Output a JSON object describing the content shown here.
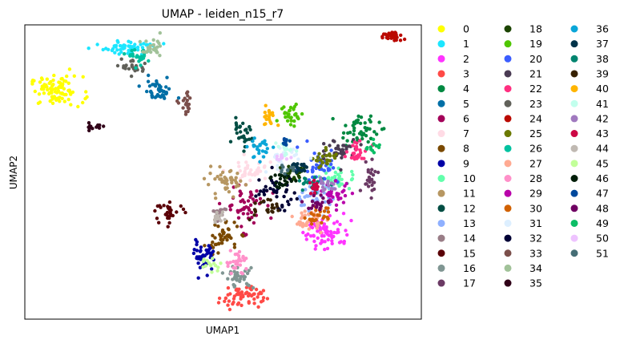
{
  "chart_data": {
    "type": "scatter",
    "title": "UMAP - leiden_n15_r7",
    "xlabel": "UMAP1",
    "ylabel": "UMAP2",
    "xlim": [
      0,
      100
    ],
    "ylim": [
      0,
      100
    ],
    "grid": false,
    "ticks_visible": false,
    "legend_placement": "right, outside plot, 3 columns",
    "series": [
      {
        "name": "0",
        "color": "#ffff00",
        "x": 8.0,
        "y": 77.5,
        "sx": 3.3,
        "sy": 2.5,
        "n": 90
      },
      {
        "name": "1",
        "color": "#1ce6ff",
        "x": 26.5,
        "y": 92.2,
        "sx": 3.2,
        "sy": 1.2,
        "n": 55
      },
      {
        "name": "2",
        "color": "#ff34ff",
        "x": 76.2,
        "y": 29.9,
        "sx": 3.0,
        "sy": 3.0,
        "n": 70
      },
      {
        "name": "3",
        "color": "#ff4a46",
        "x": 54.6,
        "y": 7.8,
        "sx": 2.8,
        "sy": 1.9,
        "n": 60
      },
      {
        "name": "4",
        "color": "#008941",
        "x": 84.5,
        "y": 64.0,
        "sx": 2.5,
        "sy": 2.5,
        "n": 50
      },
      {
        "name": "5",
        "color": "#006fa6",
        "x": 33.6,
        "y": 77.4,
        "sx": 2.0,
        "sy": 2.0,
        "n": 45
      },
      {
        "name": "6",
        "color": "#a30059",
        "x": 55.3,
        "y": 39.0,
        "sx": 2.5,
        "sy": 4.0,
        "n": 55
      },
      {
        "name": "7",
        "color": "#ffdbe5",
        "x": 56.5,
        "y": 50.0,
        "sx": 3.0,
        "sy": 2.0,
        "n": 40
      },
      {
        "name": "8",
        "color": "#7a4900",
        "x": 49.8,
        "y": 28.1,
        "sx": 2.0,
        "sy": 2.5,
        "n": 45
      },
      {
        "name": "9",
        "color": "#0000a6",
        "x": 45.3,
        "y": 21.5,
        "sx": 1.3,
        "sy": 2.5,
        "n": 45
      },
      {
        "name": "10",
        "color": "#63ffac",
        "x": 78.8,
        "y": 47.6,
        "sx": 2.5,
        "sy": 2.0,
        "n": 45
      },
      {
        "name": "11",
        "color": "#b79762",
        "x": 50.6,
        "y": 46.2,
        "sx": 2.5,
        "sy": 2.0,
        "n": 45
      },
      {
        "name": "12",
        "color": "#004d43",
        "x": 54.7,
        "y": 61.9,
        "sx": 1.5,
        "sy": 2.5,
        "n": 30
      },
      {
        "name": "13",
        "color": "#8fb0ff",
        "x": 72.7,
        "y": 41.5,
        "sx": 2.5,
        "sy": 2.5,
        "n": 40
      },
      {
        "name": "14",
        "color": "#997d87",
        "x": 49.0,
        "y": 36.1,
        "sx": 1.0,
        "sy": 1.5,
        "n": 15
      },
      {
        "name": "15",
        "color": "#5a0007",
        "x": 36.7,
        "y": 36.4,
        "sx": 1.8,
        "sy": 1.5,
        "n": 30
      },
      {
        "name": "16",
        "color": "#809693",
        "x": 54.2,
        "y": 14.3,
        "sx": 1.8,
        "sy": 1.8,
        "n": 35
      },
      {
        "name": "17",
        "color": "#6b3a64",
        "x": 87.0,
        "y": 49.0,
        "sx": 1.0,
        "sy": 3.0,
        "n": 25
      },
      {
        "name": "18",
        "color": "#1b4400",
        "x": 68.2,
        "y": 49.7,
        "sx": 2.0,
        "sy": 2.0,
        "n": 30
      },
      {
        "name": "19",
        "color": "#4fc601",
        "x": 67.4,
        "y": 69.6,
        "sx": 1.5,
        "sy": 2.0,
        "n": 30
      },
      {
        "name": "20",
        "color": "#3b5dff",
        "x": 74.0,
        "y": 52.0,
        "sx": 2.5,
        "sy": 3.0,
        "n": 45
      },
      {
        "name": "21",
        "color": "#4a3b53",
        "x": 79.5,
        "y": 57.5,
        "sx": 2.5,
        "sy": 2.0,
        "n": 40
      },
      {
        "name": "22",
        "color": "#ff2f80",
        "x": 84.0,
        "y": 56.5,
        "sx": 1.5,
        "sy": 1.5,
        "n": 30
      },
      {
        "name": "23",
        "color": "#61615a",
        "x": 27.5,
        "y": 86.0,
        "sx": 1.5,
        "sy": 1.5,
        "n": 25
      },
      {
        "name": "24",
        "color": "#ba0900",
        "x": 92.5,
        "y": 96.0,
        "sx": 1.5,
        "sy": 0.9,
        "n": 35
      },
      {
        "name": "25",
        "color": "#6b7900",
        "x": 76.2,
        "y": 54.3,
        "sx": 1.5,
        "sy": 1.5,
        "n": 25
      },
      {
        "name": "26",
        "color": "#00c2a0",
        "x": 29.0,
        "y": 89.0,
        "sx": 1.3,
        "sy": 1.3,
        "n": 25
      },
      {
        "name": "27",
        "color": "#ffaa92",
        "x": 71.4,
        "y": 33.8,
        "sx": 1.8,
        "sy": 1.8,
        "n": 35
      },
      {
        "name": "28",
        "color": "#ff90c9",
        "x": 53.5,
        "y": 19.5,
        "sx": 1.5,
        "sy": 2.0,
        "n": 30
      },
      {
        "name": "29",
        "color": "#b903aa",
        "x": 78.5,
        "y": 42.0,
        "sx": 2.0,
        "sy": 2.0,
        "n": 30
      },
      {
        "name": "30",
        "color": "#d16100",
        "x": 74.0,
        "y": 35.0,
        "sx": 1.5,
        "sy": 1.5,
        "n": 25
      },
      {
        "name": "31",
        "color": "#ddefff",
        "x": 65.0,
        "y": 54.0,
        "sx": 2.0,
        "sy": 2.0,
        "n": 25
      },
      {
        "name": "32",
        "color": "#000035",
        "x": 63.2,
        "y": 43.1,
        "sx": 3.0,
        "sy": 3.0,
        "n": 40
      },
      {
        "name": "33",
        "color": "#7b4f4b",
        "x": 40.8,
        "y": 72.7,
        "sx": 0.8,
        "sy": 1.8,
        "n": 20
      },
      {
        "name": "34",
        "color": "#a1c299",
        "x": 32.3,
        "y": 91.3,
        "sx": 1.5,
        "sy": 1.8,
        "n": 25
      },
      {
        "name": "35",
        "color": "#300018",
        "x": 17.5,
        "y": 65.5,
        "sx": 1.5,
        "sy": 0.7,
        "n": 15
      },
      {
        "name": "36",
        "color": "#0aa6d8",
        "x": 59.5,
        "y": 58.0,
        "sx": 1.5,
        "sy": 2.0,
        "n": 25
      },
      {
        "name": "37",
        "color": "#013349",
        "x": 69.0,
        "y": 51.5,
        "sx": 1.5,
        "sy": 1.5,
        "n": 20
      },
      {
        "name": "38",
        "color": "#00846f",
        "x": 72.0,
        "y": 45.5,
        "sx": 1.5,
        "sy": 1.5,
        "n": 20
      },
      {
        "name": "39",
        "color": "#372101",
        "x": 60.0,
        "y": 37.5,
        "sx": 2.0,
        "sy": 2.0,
        "n": 20
      },
      {
        "name": "40",
        "color": "#ffb500",
        "x": 61.5,
        "y": 69.0,
        "sx": 1.0,
        "sy": 1.5,
        "n": 20
      },
      {
        "name": "41",
        "color": "#c2ffed",
        "x": 66.0,
        "y": 58.0,
        "sx": 1.2,
        "sy": 1.2,
        "n": 20
      },
      {
        "name": "42",
        "color": "#a079bf",
        "x": 76.0,
        "y": 46.0,
        "sx": 1.2,
        "sy": 1.2,
        "n": 15
      },
      {
        "name": "43",
        "color": "#cc0744",
        "x": 73.5,
        "y": 44.5,
        "sx": 1.2,
        "sy": 1.2,
        "n": 15
      },
      {
        "name": "44",
        "color": "#c0b9b2",
        "x": 48.7,
        "y": 34.5,
        "sx": 0.8,
        "sy": 1.2,
        "n": 15
      },
      {
        "name": "45",
        "color": "#c2ff99",
        "x": 47.0,
        "y": 18.6,
        "sx": 1.2,
        "sy": 1.2,
        "n": 15
      },
      {
        "name": "46",
        "color": "#001e09",
        "x": 65.0,
        "y": 47.5,
        "sx": 1.5,
        "sy": 1.5,
        "n": 20
      },
      {
        "name": "47",
        "color": "#00489c",
        "x": 65.5,
        "y": 60.0,
        "sx": 0.8,
        "sy": 0.8,
        "n": 10
      },
      {
        "name": "48",
        "color": "#6f0062",
        "x": 74.5,
        "y": 39.5,
        "sx": 1.5,
        "sy": 1.5,
        "n": 20
      },
      {
        "name": "49",
        "color": "#0cbd66",
        "x": 87.5,
        "y": 58.5,
        "sx": 1.0,
        "sy": 1.0,
        "n": 12
      },
      {
        "name": "50",
        "color": "#eec3ff",
        "x": 65.0,
        "y": 55.5,
        "sx": 1.0,
        "sy": 1.0,
        "n": 10
      },
      {
        "name": "51",
        "color": "#456d75",
        "x": 66.5,
        "y": 51.0,
        "sx": 1.0,
        "sy": 1.0,
        "n": 10
      }
    ]
  }
}
